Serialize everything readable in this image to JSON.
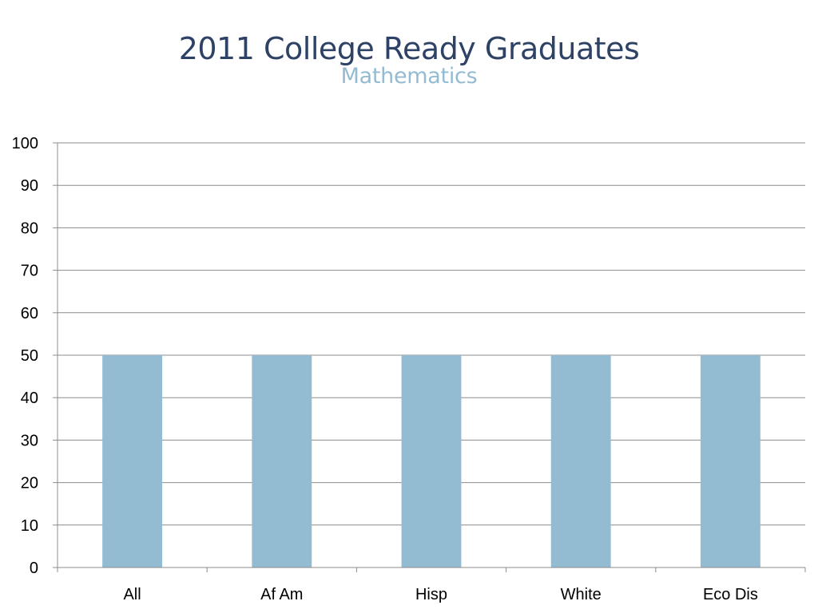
{
  "slide": {
    "title": "2011 College Ready Graduates",
    "subtitle": "Mathematics"
  },
  "chart_data": {
    "type": "bar",
    "title": "2011 College Ready Graduates",
    "subtitle": "Mathematics",
    "categories": [
      "All",
      "Af Am",
      "Hisp",
      "White",
      "Eco Dis"
    ],
    "values": [
      50,
      50,
      50,
      50,
      50
    ],
    "ylim": [
      0,
      100
    ],
    "yticks": [
      0,
      10,
      20,
      30,
      40,
      50,
      60,
      70,
      80,
      90,
      100
    ],
    "xlabel": "",
    "ylabel": "",
    "grid": true,
    "legend": "none",
    "colors": {
      "bar": "#93bcd3",
      "grid": "#8c8c8c",
      "axis": "#8c8c8c",
      "title": "#2e4266",
      "subtitle": "#93bcd3"
    }
  }
}
